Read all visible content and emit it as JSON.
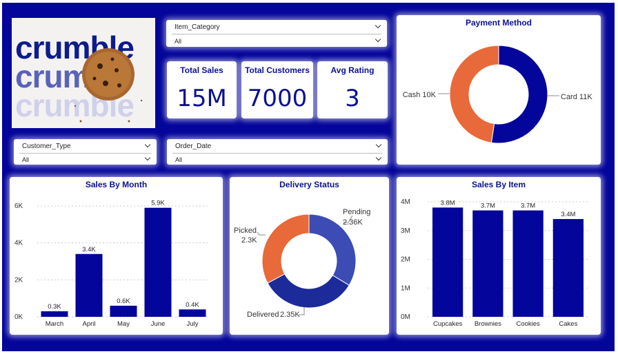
{
  "brand": {
    "word": "crumble"
  },
  "slicers": {
    "item_category": {
      "label": "Item_Category",
      "value": "All"
    },
    "customer_type": {
      "label": "Customer_Type",
      "value": "All"
    },
    "order_date": {
      "label": "Order_Date",
      "value": "All"
    }
  },
  "kpis": [
    {
      "label": "Total Sales",
      "value": "15M"
    },
    {
      "label": "Total Customers",
      "value": "7000"
    },
    {
      "label": "Avg Rating",
      "value": "3"
    }
  ],
  "colors": {
    "navy": "#04059a",
    "orange": "#e8693a",
    "blue_dark": "#1c2a9a",
    "blue_mid": "#3c4cb4"
  },
  "chart_data": [
    {
      "type": "pie",
      "title": "Payment Method",
      "donut": true,
      "slices": [
        {
          "label": "Card",
          "value": 11000,
          "display": "Card 11K",
          "color": "#04059a"
        },
        {
          "label": "Cash",
          "value": 10000,
          "display": "Cash 10K",
          "color": "#e8693a"
        }
      ]
    },
    {
      "type": "bar",
      "title": "Sales By Month",
      "categories": [
        "March",
        "April",
        "May",
        "June",
        "July"
      ],
      "values": [
        300,
        3400,
        600,
        5900,
        400
      ],
      "data_labels": [
        "0.3K",
        "3.4K",
        "0.6K",
        "5.9K",
        "0.4K"
      ],
      "ylim": [
        0,
        6000
      ],
      "yticks": [
        0,
        2000,
        4000,
        6000
      ],
      "ytick_labels": [
        "0K",
        "2K",
        "4K",
        "6K"
      ],
      "grid": true
    },
    {
      "type": "pie",
      "title": "Delivery Status",
      "donut": true,
      "slices": [
        {
          "label": "Pending",
          "value": 2360,
          "display": "2.36K",
          "color": "#3c4cb4"
        },
        {
          "label": "Delivered",
          "value": 2350,
          "display": "2.35K",
          "color": "#1c2a9a"
        },
        {
          "label": "Picked",
          "value": 2300,
          "display": "2.3K",
          "color": "#e8693a"
        }
      ]
    },
    {
      "type": "bar",
      "title": "Sales By Item",
      "categories": [
        "Cupcakes",
        "Brownies",
        "Cookies",
        "Cakes"
      ],
      "values": [
        3800000,
        3700000,
        3700000,
        3400000
      ],
      "data_labels": [
        "3.8M",
        "3.7M",
        "3.7M",
        "3.4M"
      ],
      "ylim": [
        0,
        4000000
      ],
      "yticks": [
        0,
        1000000,
        2000000,
        3000000,
        4000000
      ],
      "ytick_labels": [
        "0M",
        "1M",
        "2M",
        "3M",
        "4M"
      ],
      "grid": true
    }
  ]
}
